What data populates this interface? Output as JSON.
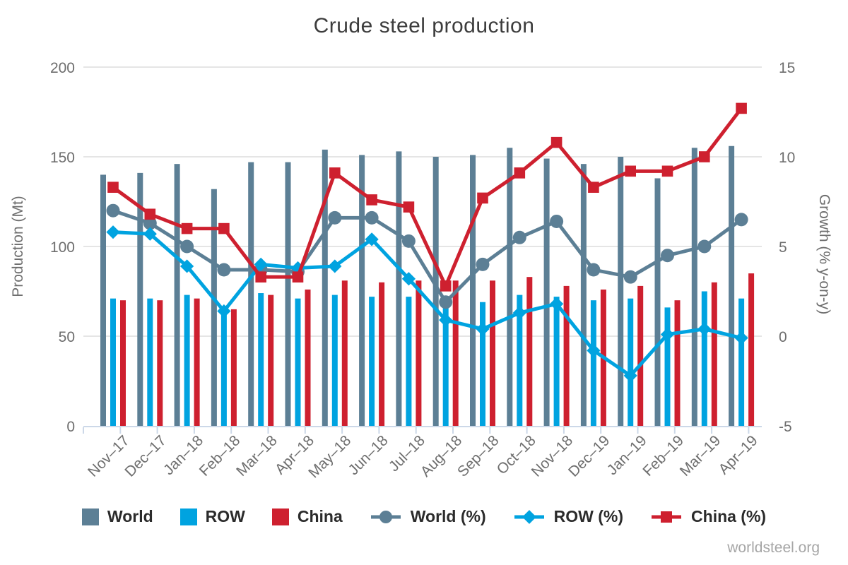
{
  "title": "Crude steel production",
  "watermark": "worldsteel.org",
  "colors": {
    "world": "#5c7f95",
    "row": "#00a3e0",
    "china": "#ce202f",
    "grid": "#e5e5e5",
    "axis_line": "#ccd8e8",
    "tick_text": "#6e6e6e",
    "title_text": "#3c3c3c",
    "legend_text": "#2b2b2b",
    "watermark_text": "#a6a6a6"
  },
  "chart_data": {
    "type": "bar",
    "subtype": "grouped bars with overlaid lines (dual axis combo)",
    "title": "Crude steel production",
    "grid": "horizontal only",
    "legend_position": "bottom",
    "categories": [
      "Nov–17",
      "Dec–17",
      "Jan–18",
      "Feb–18",
      "Mar–18",
      "Apr–18",
      "May–18",
      "Jun–18",
      "Jul–18",
      "Aug–18",
      "Sep–18",
      "Oct–18",
      "Nov–18",
      "Dec–19",
      "Jan–19",
      "Feb–19",
      "Mar–19",
      "Apr–19"
    ],
    "y_left": {
      "label": "Production (Mt)",
      "ticks": [
        0,
        50,
        100,
        150,
        200
      ],
      "range": [
        0,
        200
      ]
    },
    "y_right": {
      "label": "Growth (% y-on-y)",
      "ticks": [
        -5,
        0,
        5,
        10,
        15
      ],
      "range": [
        -5,
        15
      ]
    },
    "bar_series": [
      {
        "name": "World",
        "axis": "left",
        "color": "#5c7f95",
        "values": [
          140,
          141,
          146,
          132,
          147,
          147,
          154,
          151,
          153,
          150,
          151,
          155,
          149,
          146,
          150,
          138,
          155,
          156
        ]
      },
      {
        "name": "ROW",
        "axis": "left",
        "color": "#00a3e0",
        "values": [
          71,
          71,
          73,
          65,
          74,
          71,
          73,
          72,
          72,
          69,
          69,
          73,
          72,
          70,
          71,
          66,
          75,
          71
        ]
      },
      {
        "name": "China",
        "axis": "left",
        "color": "#ce202f",
        "values": [
          70,
          70,
          71,
          65,
          73,
          76,
          81,
          80,
          81,
          81,
          81,
          83,
          78,
          76,
          78,
          70,
          80,
          85
        ]
      }
    ],
    "line_series": [
      {
        "name": "World (%)",
        "axis": "right",
        "marker": "circle",
        "color": "#5c7f95",
        "values": [
          7.0,
          6.3,
          5.0,
          3.7,
          3.7,
          3.6,
          6.6,
          6.6,
          5.3,
          1.9,
          4.0,
          5.5,
          6.4,
          3.7,
          3.3,
          4.5,
          5.0,
          6.5
        ]
      },
      {
        "name": "ROW (%)",
        "axis": "right",
        "marker": "diamond",
        "color": "#00a3e0",
        "values": [
          5.8,
          5.7,
          3.9,
          1.4,
          4.0,
          3.8,
          3.9,
          5.4,
          3.2,
          0.9,
          0.4,
          1.3,
          1.8,
          -0.8,
          -2.2,
          0.1,
          0.4,
          -0.1
        ]
      },
      {
        "name": "China (%)",
        "axis": "right",
        "marker": "square",
        "color": "#ce202f",
        "values": [
          8.3,
          6.8,
          6.0,
          6.0,
          3.3,
          3.3,
          9.1,
          7.6,
          7.2,
          2.8,
          7.7,
          9.1,
          10.8,
          8.3,
          9.2,
          9.2,
          10.0,
          12.7
        ]
      }
    ]
  }
}
